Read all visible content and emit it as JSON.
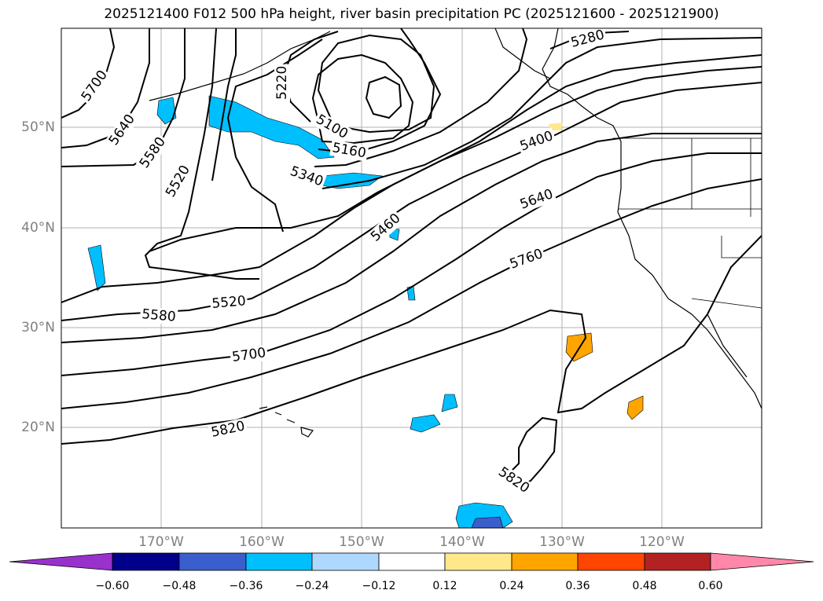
{
  "title": "2025121400 F012 500 hPa height, river basin precipitation PC (2025121600 - 2025121900)",
  "lat_labels": [
    "50°N",
    "40°N",
    "30°N",
    "20°N"
  ],
  "lon_labels": [
    "170°W",
    "160°W",
    "150°W",
    "140°W",
    "130°W",
    "120°W"
  ],
  "contour_labels": [
    "5700",
    "5640",
    "5580",
    "5520",
    "5220",
    "5100",
    "5160",
    "5340",
    "5280",
    "5400",
    "5640",
    "5460",
    "5760",
    "5520",
    "5580",
    "5700",
    "5820",
    "5820"
  ],
  "colorbar": {
    "ticks": [
      "−0.60",
      "−0.48",
      "−0.36",
      "−0.24",
      "−0.12",
      "0.12",
      "0.24",
      "0.36",
      "0.48",
      "0.60"
    ],
    "colors": [
      "#9932CC",
      "#00008B",
      "#3A5FCD",
      "#00BFFF",
      "#ADD8FF",
      "#FFFFFF",
      "#FFE88A",
      "#FFA500",
      "#FF4500",
      "#B22222",
      "#FF88AA"
    ]
  }
}
